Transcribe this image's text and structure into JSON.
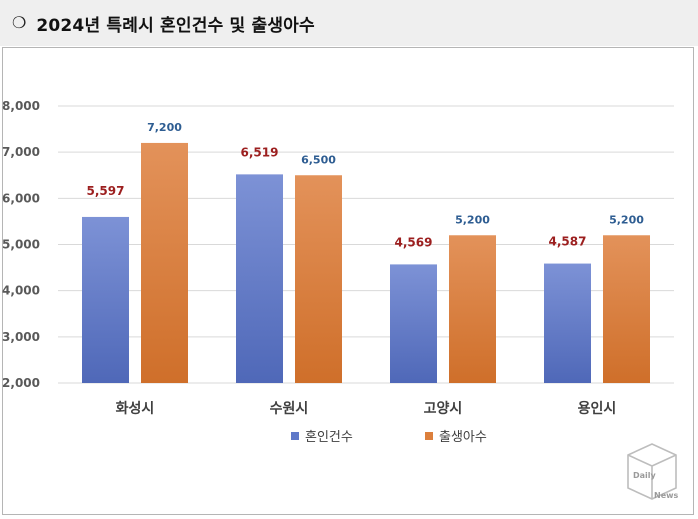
{
  "header": {
    "bullet": "❍",
    "title": "2024년 특례시 혼인건수 및 출생아수"
  },
  "watermark": {
    "line1": "Daily",
    "line2": "News"
  },
  "colors": {
    "marriage": "#5f79c9",
    "birth": "#dc7f3c",
    "marriage_label": "#9c1f1f",
    "birth_label": "#2e5d92",
    "grid": "#d9d9d9"
  },
  "chart_data": {
    "type": "bar",
    "title": "",
    "xlabel": "",
    "ylabel": "",
    "categories": [
      "화성시",
      "수원시",
      "고양시",
      "용인시"
    ],
    "series": [
      {
        "name": "혼인건수",
        "values": [
          5597,
          6519,
          4569,
          4587
        ],
        "labels": [
          "5,597",
          "6,519",
          "4,569",
          "4,587"
        ]
      },
      {
        "name": "출생아수",
        "values": [
          7200,
          6500,
          5200,
          5200
        ],
        "labels": [
          "7,200",
          "6,500",
          "5,200",
          "5,200"
        ]
      }
    ],
    "ylim": [
      2000,
      8000
    ],
    "yticks": [
      2000,
      3000,
      4000,
      5000,
      6000,
      7000,
      8000
    ],
    "ytick_labels": [
      "2,000",
      "3,000",
      "4,000",
      "5,000",
      "6,000",
      "7,000",
      "8,000"
    ],
    "grid": true,
    "legend": "bottom"
  }
}
